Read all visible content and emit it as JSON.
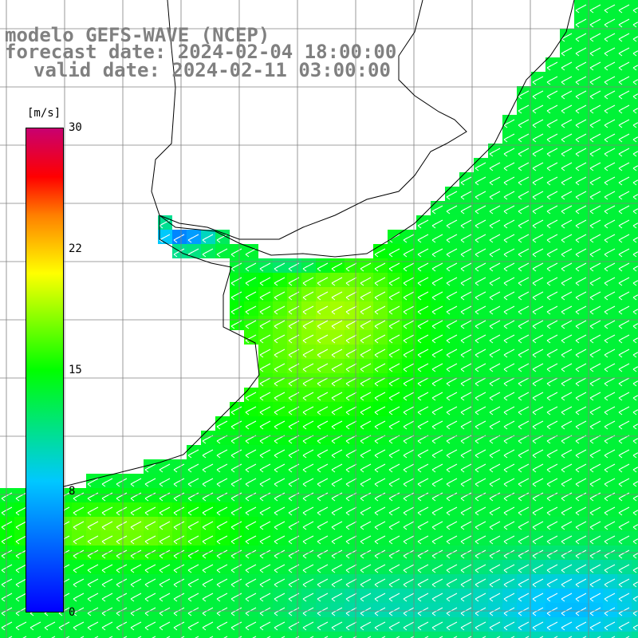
{
  "title": {
    "line1": "modelo GEFS-WAVE (NCEP)",
    "line2": "forecast date: 2024-02-04 18:00:00",
    "line3": "valid date: 2024-02-11 03:00:00"
  },
  "colorbar": {
    "unit": "[m/s]",
    "ticks": [
      {
        "label": "30",
        "value": 30
      },
      {
        "label": "22",
        "value": 22
      },
      {
        "label": "15",
        "value": 15
      },
      {
        "label": "8",
        "value": 8
      },
      {
        "label": "0",
        "value": 0
      }
    ],
    "colors": [
      "#0000ff",
      "#00c8ff",
      "#00ff00",
      "#ffff00",
      "#ff8000",
      "#ff0000",
      "#c80070"
    ]
  },
  "map": {
    "variable": "wind speed with direction arrows",
    "land_color": "#ffffff",
    "coast_color": "#000000",
    "grid_color": "#808080",
    "arrow_color": "#ffffff"
  }
}
